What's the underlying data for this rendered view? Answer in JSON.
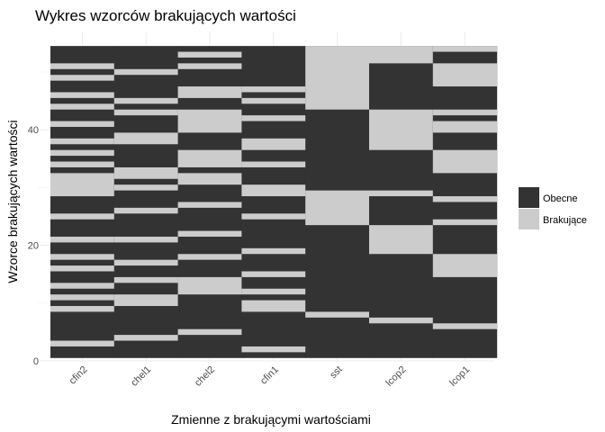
{
  "chart_data": {
    "type": "heatmap",
    "title": "Wykres wzorców brakujących wartości",
    "xlabel": "Zmienne z brakującymi wartościami",
    "ylabel": "Wzorce brakujących wartości",
    "categories": [
      "cfin2",
      "chel1",
      "chel2",
      "cfin1",
      "sst",
      "lcop2",
      "lcop1"
    ],
    "ylim": [
      0,
      54
    ],
    "yticks": [
      0,
      20,
      40
    ],
    "legend": {
      "position": "right",
      "items": [
        {
          "label": "Obecne",
          "color": "#333333"
        },
        {
          "label": "Brakujące",
          "color": "#cccccc"
        }
      ]
    },
    "grid": true,
    "missing_intervals": {
      "cfin2": [
        [
          2.5,
          3.5
        ],
        [
          8.5,
          9.5
        ],
        [
          10.5,
          11.5
        ],
        [
          12.5,
          13.5
        ],
        [
          15.5,
          16.5
        ],
        [
          17.5,
          18.5
        ],
        [
          20.5,
          21.5
        ],
        [
          24.5,
          25.5
        ],
        [
          28.5,
          32.5
        ],
        [
          33.5,
          34.5
        ],
        [
          35.5,
          36.5
        ],
        [
          37.5,
          38.5
        ],
        [
          40.5,
          41.5
        ],
        [
          43.5,
          44.5
        ],
        [
          45.5,
          46.5
        ],
        [
          48.5,
          49.5
        ],
        [
          50.5,
          51.5
        ]
      ],
      "chel1": [
        [
          3.5,
          4.5
        ],
        [
          9.5,
          11.5
        ],
        [
          13.5,
          14.5
        ],
        [
          16.5,
          17.5
        ],
        [
          20.5,
          21.5
        ],
        [
          25.5,
          26.5
        ],
        [
          29.5,
          30.5
        ],
        [
          31.5,
          33.5
        ],
        [
          37.5,
          39.5
        ],
        [
          42.5,
          43.5
        ],
        [
          44.5,
          45.5
        ],
        [
          49.5,
          50.5
        ]
      ],
      "chel2": [
        [
          4.5,
          5.5
        ],
        [
          11.5,
          14.5
        ],
        [
          17.5,
          18.5
        ],
        [
          21.5,
          22.5
        ],
        [
          26.5,
          27.5
        ],
        [
          30.5,
          32.5
        ],
        [
          33.5,
          36.5
        ],
        [
          39.5,
          43.5
        ],
        [
          45.5,
          47.5
        ],
        [
          50.5,
          51.5
        ],
        [
          52.5,
          53.5
        ]
      ],
      "cfin1": [
        [
          1.5,
          2.5
        ],
        [
          8.5,
          10.5
        ],
        [
          11.5,
          12.5
        ],
        [
          14.5,
          15.5
        ],
        [
          18.5,
          19.5
        ],
        [
          24.5,
          25.5
        ],
        [
          28.5,
          30.5
        ],
        [
          33.5,
          34.5
        ],
        [
          36.5,
          38.5
        ],
        [
          41.5,
          42.5
        ],
        [
          44.5,
          45.5
        ],
        [
          46.5,
          47.5
        ]
      ],
      "sst": [
        [
          7.5,
          8.5
        ],
        [
          23.5,
          29.5
        ],
        [
          43.5,
          54.5
        ]
      ],
      "lcop2": [
        [
          6.5,
          7.5
        ],
        [
          18.5,
          23.5
        ],
        [
          28.5,
          29.5
        ],
        [
          36.5,
          43.5
        ],
        [
          51.5,
          54.5
        ]
      ],
      "lcop1": [
        [
          5.5,
          6.5
        ],
        [
          14.5,
          18.5
        ],
        [
          23.5,
          24.5
        ],
        [
          27.5,
          28.5
        ],
        [
          32.5,
          36.5
        ],
        [
          39.5,
          41.5
        ],
        [
          42.5,
          43.5
        ],
        [
          47.5,
          51.5
        ],
        [
          53.5,
          54.5
        ]
      ]
    }
  }
}
